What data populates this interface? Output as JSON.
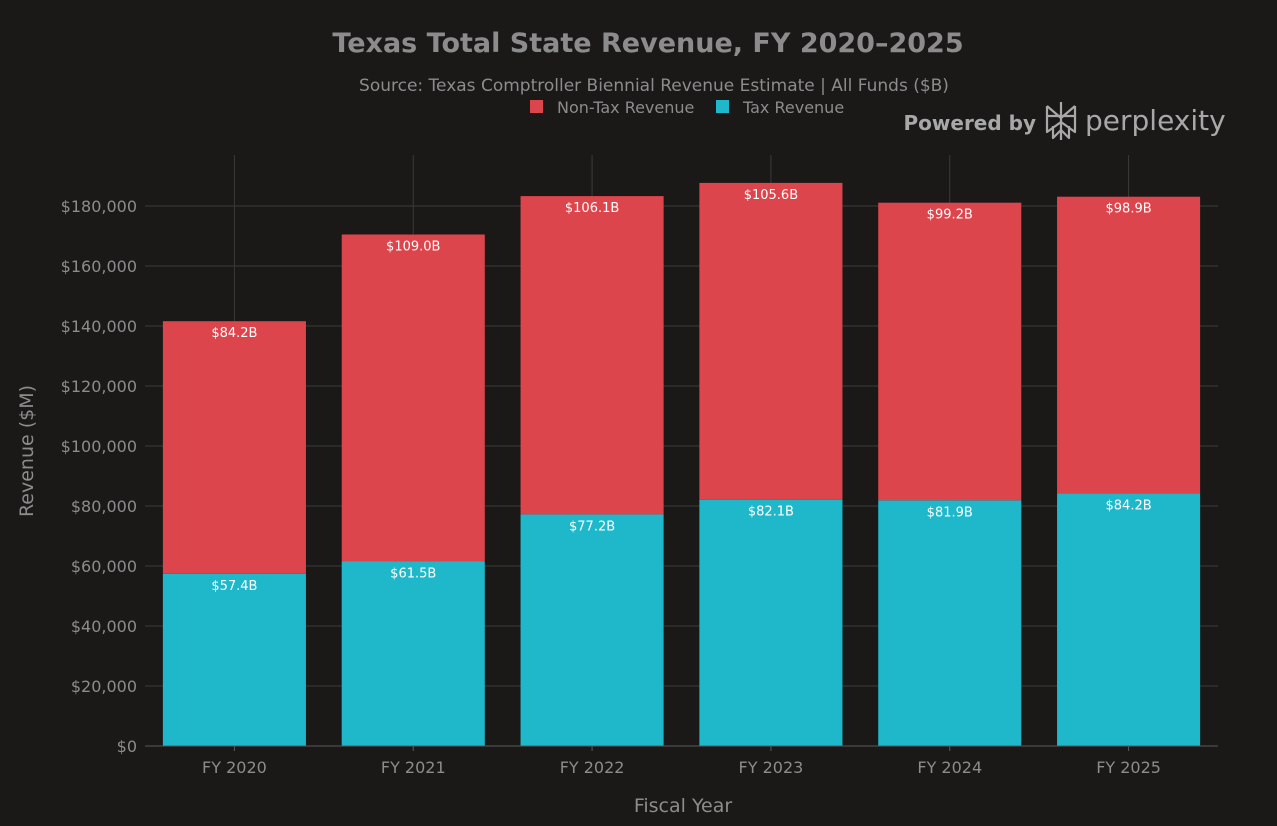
{
  "branding": {
    "powered_by": "Powered by",
    "name": "perplexity"
  },
  "chart_data": {
    "type": "bar",
    "stacked": true,
    "title": "Texas Total State Revenue, FY 2020–2025",
    "subtitle": "Source: Texas Comptroller Biennial Revenue Estimate | All Funds ($B)",
    "xlabel": "Fiscal Year",
    "ylabel": "Revenue ($M)",
    "ylim": [
      0,
      197000
    ],
    "yticks": [
      0,
      20000,
      40000,
      60000,
      80000,
      100000,
      120000,
      140000,
      160000,
      180000
    ],
    "ytick_labels": [
      "$0",
      "$20,000",
      "$40,000",
      "$60,000",
      "$80,000",
      "$100,000",
      "$120,000",
      "$140,000",
      "$160,000",
      "$180,000"
    ],
    "categories": [
      "FY 2020",
      "FY 2021",
      "FY 2022",
      "FY 2023",
      "FY 2024",
      "FY 2025"
    ],
    "legend_order": [
      "Non-Tax Revenue",
      "Tax Revenue"
    ],
    "series": [
      {
        "name": "Tax Revenue",
        "color": "#1fb8cb",
        "values": [
          57400,
          61500,
          77200,
          82100,
          81900,
          84200
        ],
        "labels": [
          "$57.4B",
          "$61.5B",
          "$77.2B",
          "$82.1B",
          "$81.9B",
          "$84.2B"
        ]
      },
      {
        "name": "Non-Tax Revenue",
        "color": "#dc454c",
        "values": [
          84200,
          109000,
          106100,
          105600,
          99200,
          98900
        ],
        "labels": [
          "$84.2B",
          "$109.0B",
          "$106.1B",
          "$105.6B",
          "$99.2B",
          "$98.9B"
        ]
      }
    ]
  }
}
